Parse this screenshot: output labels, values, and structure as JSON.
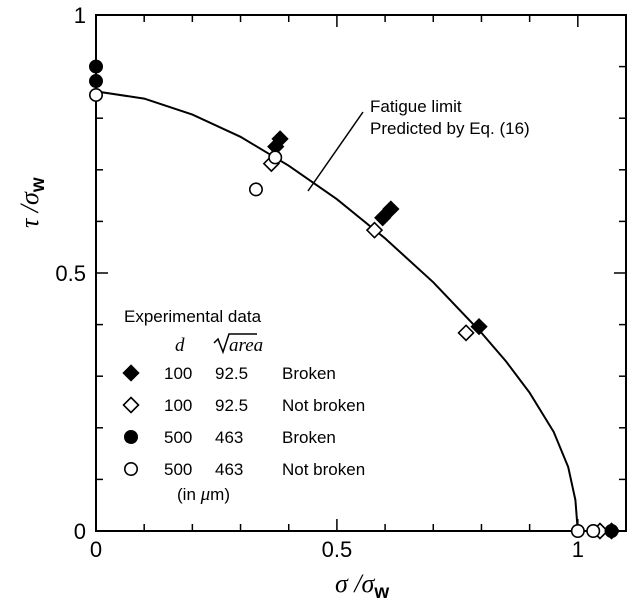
{
  "chart_data": {
    "type": "scatter",
    "xlabel": {
      "main": "σ /σ",
      "sub": "w"
    },
    "ylabel": {
      "main": "τ /σ",
      "sub": "w"
    },
    "xlim": [
      0,
      1.1
    ],
    "ylim": [
      0,
      1.0
    ],
    "x_ticks": [
      {
        "value": 0,
        "label": "0"
      },
      {
        "value": 0.5,
        "label": "0.5"
      },
      {
        "value": 1,
        "label": "1"
      }
    ],
    "y_ticks": [
      {
        "value": 0,
        "label": "0"
      },
      {
        "value": 0.5,
        "label": "0.5"
      },
      {
        "value": 1,
        "label": "1"
      }
    ],
    "grid": false,
    "curve": {
      "label_line1": "Fatigue limit",
      "label_line2": "Predicted by Eq. (16)",
      "points": [
        [
          0,
          0.852
        ],
        [
          0.1,
          0.838
        ],
        [
          0.2,
          0.807
        ],
        [
          0.3,
          0.764
        ],
        [
          0.4,
          0.708
        ],
        [
          0.5,
          0.643
        ],
        [
          0.6,
          0.567
        ],
        [
          0.7,
          0.482
        ],
        [
          0.8,
          0.384
        ],
        [
          0.85,
          0.33
        ],
        [
          0.9,
          0.268
        ],
        [
          0.95,
          0.192
        ],
        [
          0.98,
          0.124
        ],
        [
          0.995,
          0.06
        ],
        [
          1.0,
          0.0
        ]
      ]
    },
    "series": [
      {
        "marker": "diamond-filled",
        "points": [
          [
            0.373,
            0.745
          ],
          [
            0.382,
            0.76
          ],
          [
            0.595,
            0.607
          ],
          [
            0.612,
            0.624
          ],
          [
            0.795,
            0.396
          ],
          [
            1.07,
            0.0
          ]
        ]
      },
      {
        "marker": "diamond-open",
        "points": [
          [
            0.364,
            0.712
          ],
          [
            0.578,
            0.583
          ],
          [
            0.768,
            0.384
          ],
          [
            1.046,
            0.0
          ]
        ]
      },
      {
        "marker": "circle-filled",
        "points": [
          [
            0,
            0.9
          ],
          [
            0,
            0.872
          ],
          [
            1.07,
            0.0
          ]
        ]
      },
      {
        "marker": "circle-open",
        "points": [
          [
            0,
            0.845
          ],
          [
            0.332,
            0.662
          ],
          [
            0.372,
            0.724
          ],
          [
            1.0,
            0.0
          ],
          [
            1.032,
            0.0
          ]
        ]
      }
    ],
    "legend": {
      "title": "Experimental data",
      "header_d": "d",
      "header_area": "area",
      "rows": [
        {
          "marker": "diamond-filled",
          "d": "100",
          "area": "92.5",
          "status": "Broken"
        },
        {
          "marker": "diamond-open",
          "d": "100",
          "area": "92.5",
          "status": "Not broken"
        },
        {
          "marker": "circle-filled",
          "d": "500",
          "area": "463",
          "status": "Broken"
        },
        {
          "marker": "circle-open",
          "d": "500",
          "area": "463",
          "status": "Not broken"
        }
      ],
      "unit_note_prefix": "(in ",
      "unit_note_mu": "μ",
      "unit_note_suffix": "m)"
    }
  }
}
